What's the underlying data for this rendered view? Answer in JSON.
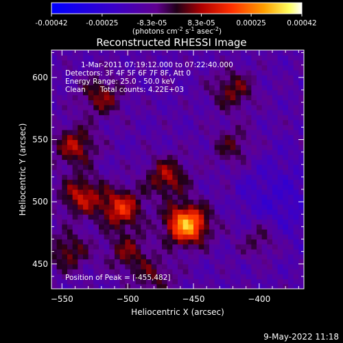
{
  "colorbar": {
    "tick_labels": [
      "-0.00042",
      "-0.00025",
      "-8.3e-05",
      "8.3e-05",
      "0.00025",
      "0.00042"
    ],
    "tick_values": [
      -0.00042,
      -0.00025,
      -8.3e-05,
      8.3e-05,
      0.00025,
      0.00042
    ],
    "range": [
      -0.00042,
      0.00042
    ],
    "units_text": "(photons cm",
    "units_exp1": "-2",
    "units_mid": " s",
    "units_exp2": "-1",
    "units_end": " asec",
    "units_exp3": "-2",
    "units_close": ")"
  },
  "chart_data": {
    "type": "heatmap",
    "title": "Reconstructed RHESSI Image",
    "xlabel": "Heliocentric X (arcsec)",
    "ylabel": "Heliocentric Y (arcsec)",
    "xlim": [
      -558,
      -366
    ],
    "ylim": [
      430,
      622
    ],
    "x_ticks": [
      -550,
      -500,
      -450,
      -400
    ],
    "y_ticks": [
      450,
      500,
      550,
      600
    ],
    "colormap": "RHESSI fire (blue to purple to red to yellow to white)",
    "peak": [
      -455,
      482
    ],
    "annotations": {
      "time": "1-Mar-2011 07:19:12.000 to 07:22:40.000",
      "detectors": "Detectors: 3F 4F 5F 6F 7F 8F, Att 0",
      "energy": "Energy Range: 25.0 - 50.0 keV",
      "method": "Clean",
      "counts": "Total counts: 4.22E+03",
      "peak_text": "Position of Peak = [-455,482]"
    },
    "sources": [
      {
        "x": -455,
        "y": 482,
        "intensity": 0.00042
      },
      {
        "x": -505,
        "y": 495,
        "intensity": 0.00026
      },
      {
        "x": -535,
        "y": 505,
        "intensity": 0.00022
      },
      {
        "x": -540,
        "y": 545,
        "intensity": 0.0002
      },
      {
        "x": -470,
        "y": 520,
        "intensity": 0.0002
      },
      {
        "x": -520,
        "y": 585,
        "intensity": 0.00017
      },
      {
        "x": -545,
        "y": 460,
        "intensity": 0.00016
      },
      {
        "x": -500,
        "y": 460,
        "intensity": 0.00015
      },
      {
        "x": -420,
        "y": 590,
        "intensity": 0.00016
      },
      {
        "x": -420,
        "y": 545,
        "intensity": 0.00012
      },
      {
        "x": -400,
        "y": 470,
        "intensity": 0.00012
      },
      {
        "x": -480,
        "y": 440,
        "intensity": 0.00012
      }
    ]
  },
  "footer": {
    "timestamp": "9-May-2022 11:18"
  }
}
